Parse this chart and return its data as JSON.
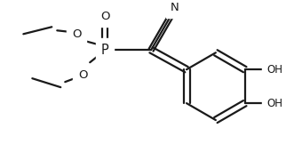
{
  "bg_color": "#ffffff",
  "line_color": "#1a1a1a",
  "line_width": 1.6,
  "font_size": 8.5,
  "figsize": [
    3.4,
    1.89
  ],
  "dpi": 100,
  "xlim": [
    0,
    340
  ],
  "ylim": [
    0,
    189
  ]
}
